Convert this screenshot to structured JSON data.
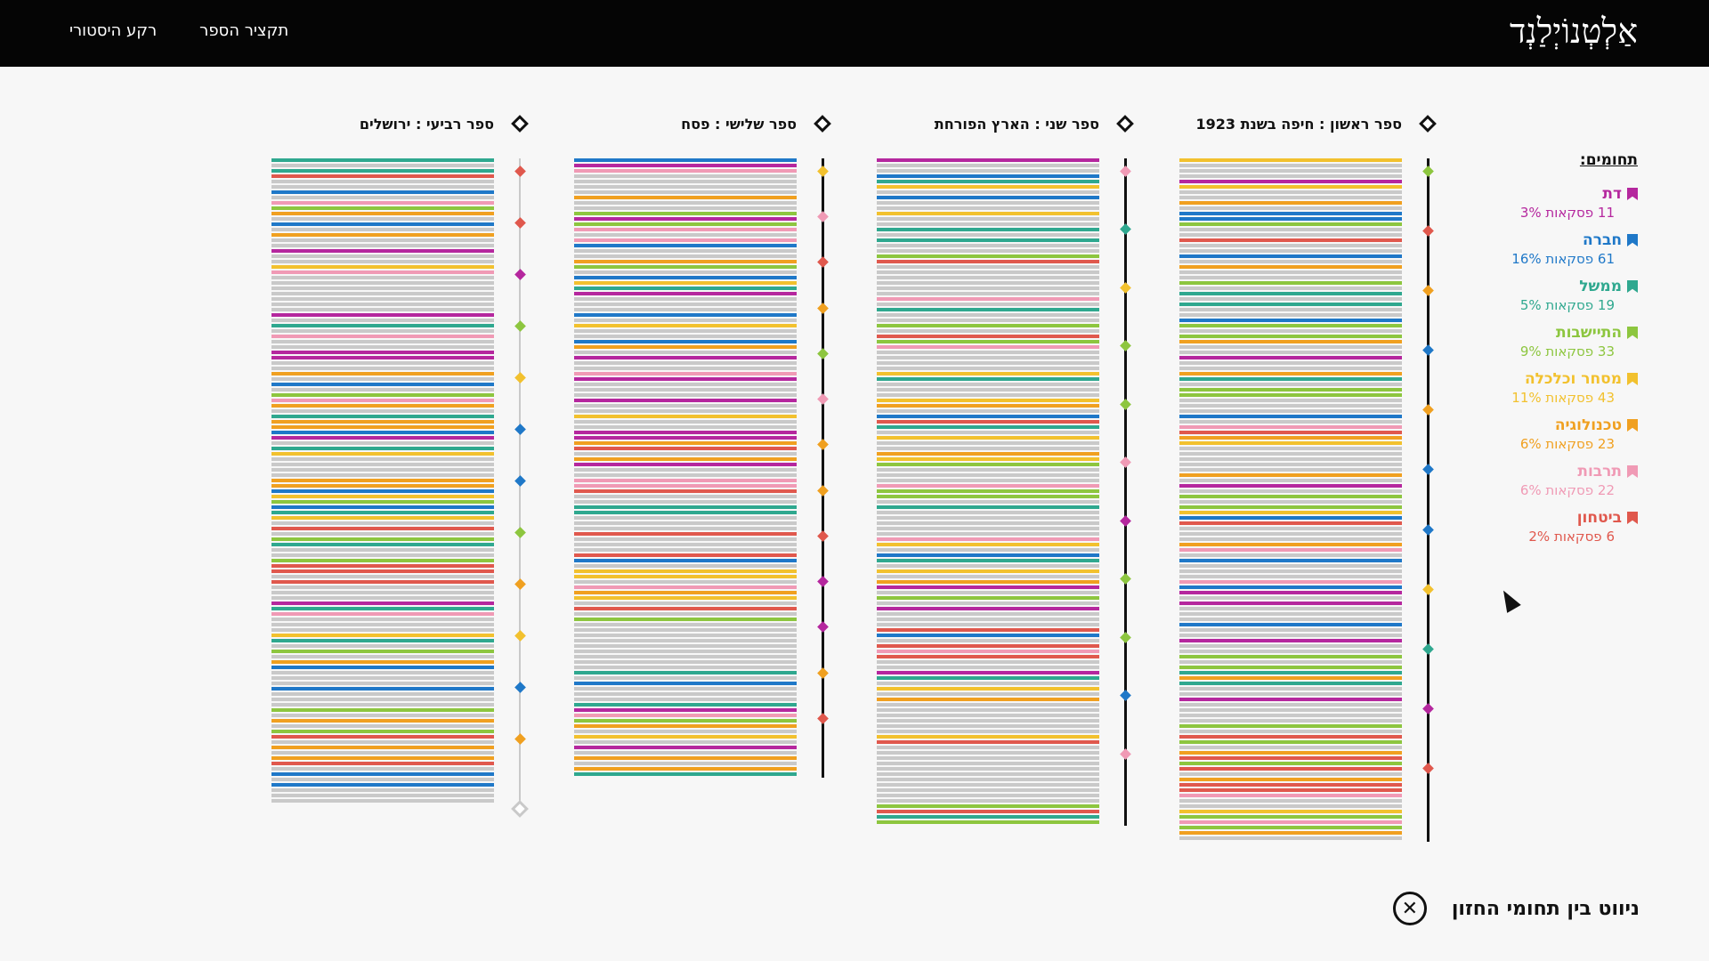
{
  "header": {
    "logo": "אַלְטְנוֹיְלַנְד",
    "nav": [
      {
        "label": "רקע היסטורי"
      },
      {
        "label": "תקציר הספר"
      }
    ]
  },
  "legend": {
    "title": "תחומים:",
    "items": [
      {
        "name": "דת",
        "count": "11 פסקאות 3%",
        "color": "#b5279e"
      },
      {
        "name": "חברה",
        "count": "61 פסקאות 16%",
        "color": "#1f78c8"
      },
      {
        "name": "ממשל",
        "count": "19 פסקאות 5%",
        "color": "#2fa88f"
      },
      {
        "name": "התיישבות",
        "count": "33 פסקאות 9%",
        "color": "#8dc63f"
      },
      {
        "name": "מסחר וכלכלה",
        "count": "43 פסקאות 11%",
        "color": "#f2c12e"
      },
      {
        "name": "טכנולוגיה",
        "count": "23 פסקאות 6%",
        "color": "#f0a020"
      },
      {
        "name": "תרבות",
        "count": "22 פסקאות 6%",
        "color": "#f09ab5"
      },
      {
        "name": "ביטחון",
        "count": "6 פסקאות 2%",
        "color": "#e0584d"
      }
    ]
  },
  "books": [
    {
      "title": "ספר ראשון : חיפה בשנת 1923"
    },
    {
      "title": "ספר שני : הארץ הפורחת"
    },
    {
      "title": "ספר שלישי : פסח"
    },
    {
      "title": "ספר רביעי : ירושלים"
    }
  ],
  "footer": {
    "label": "ניווט בין תחומי החזון",
    "close_icon": "✕"
  }
}
